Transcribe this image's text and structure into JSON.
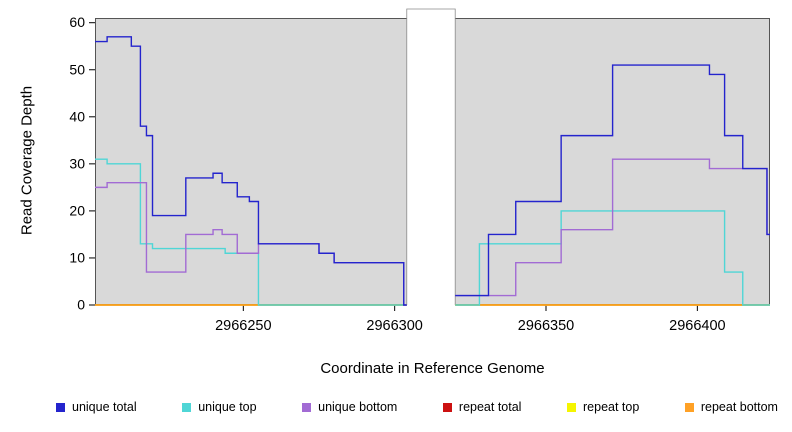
{
  "chart_data": {
    "type": "line",
    "subtype": "step-coverage-plot",
    "title": "",
    "xlabel": "Coordinate in Reference Genome",
    "ylabel": "Read Coverage Depth",
    "xlim": [
      2966201,
      2966424
    ],
    "ylim": [
      0,
      61
    ],
    "x_ticks": [
      2966250,
      2966300,
      2966350,
      2966400
    ],
    "y_ticks": [
      0,
      10,
      20,
      30,
      40,
      50,
      60
    ],
    "gap_region": [
      2966304,
      2966320
    ],
    "plot_bg": "#d9d9d9",
    "grid": false,
    "legend_position": "bottom",
    "series": [
      {
        "name": "repeat total",
        "color": "#cc1111",
        "segments": [
          [
            2966201,
            2966304,
            0
          ],
          [
            2966320,
            2966424,
            0
          ]
        ]
      },
      {
        "name": "repeat top",
        "color": "#f5f500",
        "segments": [
          [
            2966201,
            2966304,
            0
          ],
          [
            2966320,
            2966424,
            0
          ]
        ]
      },
      {
        "name": "repeat bottom",
        "color": "#ffa126",
        "segments": [
          [
            2966201,
            2966304,
            0
          ],
          [
            2966320,
            2966424,
            0
          ]
        ]
      },
      {
        "name": "unique top",
        "color": "#4fd6d6",
        "segments": [
          [
            2966201,
            2966205,
            31
          ],
          [
            2966205,
            2966216,
            30
          ],
          [
            2966216,
            2966220,
            13
          ],
          [
            2966220,
            2966244,
            12
          ],
          [
            2966244,
            2966255,
            11
          ],
          [
            2966255,
            2966304,
            0
          ],
          [
            2966320,
            2966328,
            0
          ],
          [
            2966328,
            2966355,
            13
          ],
          [
            2966355,
            2966409,
            20
          ],
          [
            2966409,
            2966415,
            7
          ],
          [
            2966415,
            2966424,
            0
          ]
        ]
      },
      {
        "name": "unique bottom",
        "color": "#a26bd4",
        "segments": [
          [
            2966201,
            2966205,
            25
          ],
          [
            2966205,
            2966218,
            26
          ],
          [
            2966218,
            2966231,
            7
          ],
          [
            2966231,
            2966240,
            15
          ],
          [
            2966240,
            2966243,
            16
          ],
          [
            2966243,
            2966248,
            15
          ],
          [
            2966248,
            2966255,
            11
          ],
          [
            2966255,
            2966275,
            13
          ],
          [
            2966275,
            2966280,
            11
          ],
          [
            2966280,
            2966303,
            9
          ],
          [
            2966303,
            2966304,
            0
          ],
          [
            2966320,
            2966340,
            2
          ],
          [
            2966340,
            2966355,
            9
          ],
          [
            2966355,
            2966372,
            16
          ],
          [
            2966372,
            2966404,
            31
          ],
          [
            2966404,
            2966423,
            29
          ],
          [
            2966423,
            2966424,
            15
          ]
        ]
      },
      {
        "name": "unique total",
        "color": "#2424cd",
        "segments": [
          [
            2966201,
            2966205,
            56
          ],
          [
            2966205,
            2966213,
            57
          ],
          [
            2966213,
            2966216,
            55
          ],
          [
            2966216,
            2966218,
            38
          ],
          [
            2966218,
            2966220,
            36
          ],
          [
            2966220,
            2966231,
            19
          ],
          [
            2966231,
            2966240,
            27
          ],
          [
            2966240,
            2966243,
            28
          ],
          [
            2966243,
            2966248,
            26
          ],
          [
            2966248,
            2966252,
            23
          ],
          [
            2966252,
            2966255,
            22
          ],
          [
            2966255,
            2966275,
            13
          ],
          [
            2966275,
            2966280,
            11
          ],
          [
            2966280,
            2966303,
            9
          ],
          [
            2966303,
            2966304,
            0
          ],
          [
            2966320,
            2966331,
            2
          ],
          [
            2966331,
            2966340,
            15
          ],
          [
            2966340,
            2966355,
            22
          ],
          [
            2966355,
            2966372,
            36
          ],
          [
            2966372,
            2966404,
            51
          ],
          [
            2966404,
            2966409,
            49
          ],
          [
            2966409,
            2966415,
            36
          ],
          [
            2966415,
            2966423,
            29
          ],
          [
            2966423,
            2966424,
            15
          ]
        ]
      }
    ],
    "legend": [
      {
        "label": "unique total",
        "color": "#2424cd"
      },
      {
        "label": "unique top",
        "color": "#4fd6d6"
      },
      {
        "label": "unique bottom",
        "color": "#a26bd4"
      },
      {
        "label": "repeat total",
        "color": "#cc1111"
      },
      {
        "label": "repeat top",
        "color": "#f5f500"
      },
      {
        "label": "repeat bottom",
        "color": "#ffa126"
      }
    ]
  }
}
